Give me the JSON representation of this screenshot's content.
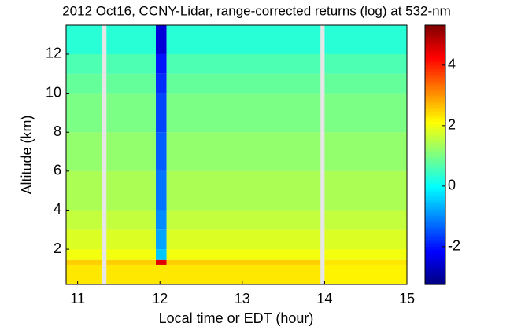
{
  "chart_data": {
    "type": "heatmap",
    "title": "2012 Oct16, CCNY-Lidar, range-corrected returns (log) at 532-nm",
    "xlabel": "Local time or EDT (hour)",
    "ylabel": "Altitude (km)",
    "x_edges": [
      10.86,
      11.3,
      11.35,
      11.95,
      12.08,
      13.95,
      14.0,
      15
    ],
    "y_edges": [
      0.19,
      1.2,
      1.45,
      2,
      3,
      4,
      6,
      8,
      10,
      11,
      12,
      13.49
    ],
    "z": [
      [
        2.3,
        null,
        2.3,
        2.3,
        2.3,
        null,
        2.2
      ],
      [
        2.5,
        null,
        2.5,
        4.5,
        2.5,
        null,
        2.3
      ],
      [
        2.0,
        null,
        2.0,
        -0.5,
        2.0,
        null,
        2.0
      ],
      [
        1.8,
        null,
        1.8,
        -0.8,
        1.8,
        null,
        1.8
      ],
      [
        1.6,
        null,
        1.6,
        -1.0,
        1.6,
        null,
        1.6
      ],
      [
        1.4,
        null,
        1.4,
        -1.2,
        1.4,
        null,
        1.4
      ],
      [
        1.2,
        null,
        1.2,
        -1.4,
        1.2,
        null,
        1.2
      ],
      [
        1.0,
        null,
        1.0,
        -1.6,
        1.0,
        null,
        1.0
      ],
      [
        0.8,
        null,
        0.8,
        -1.8,
        0.8,
        null,
        0.8
      ],
      [
        0.6,
        null,
        0.6,
        -2.0,
        0.6,
        null,
        0.6
      ],
      [
        0.3,
        null,
        0.3,
        -2.5,
        0.3,
        null,
        0.3
      ]
    ],
    "xlim": [
      10.86,
      15
    ],
    "xticks": [
      11,
      12,
      13,
      14,
      15
    ],
    "ylim": [
      0.19,
      13.49
    ],
    "yticks": [
      2,
      4,
      6,
      8,
      10,
      12
    ],
    "clim": [
      -3.25,
      5.32
    ],
    "cticks": [
      -2,
      0,
      2,
      4
    ],
    "colormap": "jet"
  }
}
